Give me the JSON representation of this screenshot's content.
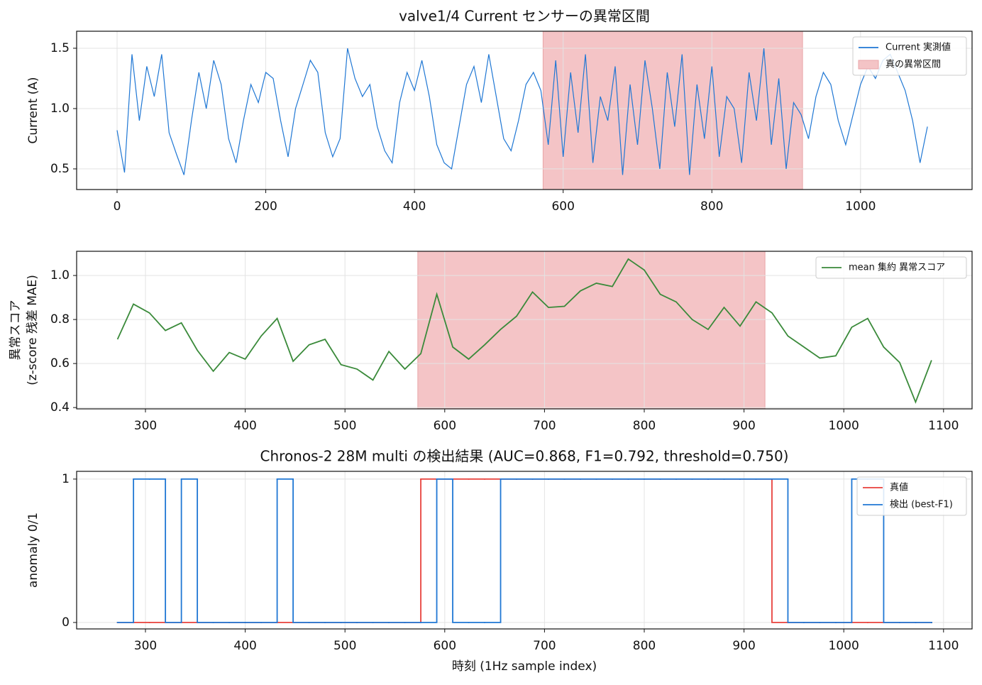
{
  "chart_data": [
    {
      "type": "line",
      "title": "valve1/4 Current センサーの異常区間",
      "ylabel": "Current (A)",
      "x": [
        0,
        10,
        20,
        30,
        40,
        50,
        60,
        70,
        80,
        90,
        100,
        110,
        120,
        130,
        140,
        150,
        160,
        170,
        180,
        190,
        200,
        210,
        220,
        230,
        240,
        250,
        260,
        270,
        280,
        290,
        300,
        310,
        320,
        330,
        340,
        350,
        360,
        370,
        380,
        390,
        400,
        410,
        420,
        430,
        440,
        450,
        460,
        470,
        480,
        490,
        500,
        510,
        520,
        530,
        540,
        550,
        560,
        570,
        580,
        590,
        600,
        610,
        620,
        630,
        640,
        650,
        660,
        670,
        680,
        690,
        700,
        710,
        720,
        730,
        740,
        750,
        760,
        770,
        780,
        790,
        800,
        810,
        820,
        830,
        840,
        850,
        860,
        870,
        880,
        890,
        900,
        910,
        920,
        930,
        940,
        950,
        960,
        970,
        980,
        990,
        1000,
        1010,
        1020,
        1030,
        1040,
        1050,
        1060,
        1070,
        1080,
        1090
      ],
      "series": [
        {
          "name": "Current 実測値",
          "color": "#1f77d4",
          "values": [
            0.82,
            0.47,
            1.45,
            0.9,
            1.35,
            1.1,
            1.45,
            0.8,
            0.62,
            0.45,
            0.9,
            1.3,
            1.0,
            1.4,
            1.2,
            0.75,
            0.55,
            0.9,
            1.2,
            1.05,
            1.3,
            1.25,
            0.9,
            0.6,
            1.0,
            1.2,
            1.4,
            1.3,
            0.8,
            0.6,
            0.75,
            1.5,
            1.25,
            1.1,
            1.2,
            0.85,
            0.65,
            0.55,
            1.05,
            1.3,
            1.15,
            1.4,
            1.1,
            0.7,
            0.55,
            0.5,
            0.85,
            1.2,
            1.35,
            1.05,
            1.45,
            1.1,
            0.75,
            0.65,
            0.9,
            1.2,
            1.3,
            1.15,
            0.7,
            1.4,
            0.6,
            1.3,
            0.8,
            1.45,
            0.55,
            1.1,
            0.9,
            1.35,
            0.45,
            1.2,
            0.7,
            1.4,
            1.0,
            0.5,
            1.3,
            0.85,
            1.45,
            0.45,
            1.2,
            0.75,
            1.35,
            0.6,
            1.1,
            1.0,
            0.55,
            1.3,
            0.9,
            1.5,
            0.7,
            1.25,
            0.5,
            1.05,
            0.95,
            0.75,
            1.1,
            1.3,
            1.2,
            0.9,
            0.7,
            0.95,
            1.2,
            1.35,
            1.25,
            1.4,
            1.45,
            1.3,
            1.15,
            0.9,
            0.55,
            0.85
          ]
        }
      ],
      "spans": [
        {
          "name": "真の異常区間",
          "x": [
            573,
            922
          ],
          "color": "#f4c4c6"
        }
      ],
      "xlim": [
        -54.4,
        1150
      ],
      "xticks": [
        0,
        200,
        400,
        600,
        800,
        1000
      ],
      "ylim": [
        0.329,
        1.641
      ],
      "yticks": [
        {
          "value": 0.5,
          "label": "0.5"
        },
        {
          "value": 1,
          "label": "1.0"
        },
        {
          "value": 1.5,
          "label": "1.5"
        }
      ],
      "grid": true,
      "legend": "upper right"
    },
    {
      "type": "line",
      "ylabel": [
        "異常スコア",
        "(z-score 残差 MAE)"
      ],
      "x": [
        272,
        288,
        304,
        320,
        336,
        352,
        368,
        384,
        400,
        416,
        432,
        448,
        464,
        480,
        496,
        512,
        528,
        544,
        560,
        576,
        592,
        608,
        624,
        640,
        656,
        672,
        688,
        704,
        720,
        736,
        752,
        768,
        784,
        800,
        816,
        832,
        848,
        864,
        880,
        896,
        912,
        928,
        944,
        960,
        976,
        992,
        1008,
        1024,
        1040,
        1056,
        1072,
        1088
      ],
      "series": [
        {
          "name": "mean 集約 異常スコア",
          "color": "#3a8a3a",
          "values": [
            0.71,
            0.87,
            0.83,
            0.75,
            0.785,
            0.66,
            0.565,
            0.65,
            0.62,
            0.725,
            0.805,
            0.61,
            0.685,
            0.71,
            0.595,
            0.575,
            0.525,
            0.655,
            0.575,
            0.645,
            0.915,
            0.675,
            0.62,
            0.685,
            0.755,
            0.815,
            0.925,
            0.855,
            0.86,
            0.93,
            0.965,
            0.95,
            1.075,
            1.025,
            0.915,
            0.88,
            0.8,
            0.755,
            0.855,
            0.77,
            0.88,
            0.83,
            0.725,
            0.675,
            0.625,
            0.635,
            0.765,
            0.805,
            0.675,
            0.605,
            0.425,
            0.615
          ]
        }
      ],
      "spans": [
        {
          "x": [
            573,
            921
          ],
          "color": "#f4c4c6"
        }
      ],
      "xlim": [
        231,
        1128.6
      ],
      "xticks": [
        300,
        400,
        500,
        600,
        700,
        800,
        900,
        1000,
        1100
      ],
      "ylim": [
        0.394,
        1.11
      ],
      "yticks": [
        {
          "value": 0.4,
          "label": "0.4"
        },
        {
          "value": 0.6,
          "label": "0.6"
        },
        {
          "value": 0.8,
          "label": "0.8"
        },
        {
          "value": 1,
          "label": "1.0"
        }
      ],
      "grid": true,
      "legend": "upper right"
    },
    {
      "type": "step",
      "title": "Chronos-2 28M multi の検出結果 (AUC=0.868, F1=0.792, threshold=0.750)",
      "xlabel": "時刻 (1Hz sample index)",
      "ylabel": "anomaly 0/1",
      "x": [
        272,
        288,
        304,
        320,
        336,
        352,
        368,
        384,
        400,
        416,
        432,
        448,
        464,
        480,
        496,
        512,
        528,
        544,
        560,
        576,
        592,
        608,
        624,
        640,
        656,
        672,
        688,
        704,
        720,
        736,
        752,
        768,
        784,
        800,
        816,
        832,
        848,
        864,
        880,
        896,
        912,
        928,
        944,
        960,
        976,
        992,
        1008,
        1024,
        1040,
        1056,
        1072,
        1088
      ],
      "series": [
        {
          "name": "真値",
          "color": "#e8413c",
          "values": [
            0,
            0,
            0,
            0,
            0,
            0,
            0,
            0,
            0,
            0,
            0,
            0,
            0,
            0,
            0,
            0,
            0,
            0,
            0,
            1,
            1,
            1,
            1,
            1,
            1,
            1,
            1,
            1,
            1,
            1,
            1,
            1,
            1,
            1,
            1,
            1,
            1,
            1,
            1,
            1,
            1,
            0,
            0,
            0,
            0,
            0,
            0,
            0,
            0,
            0,
            0,
            0
          ]
        },
        {
          "name": "検出 (best-F1)",
          "color": "#1f77d4",
          "values": [
            0,
            1,
            1,
            0,
            1,
            0,
            0,
            0,
            0,
            0,
            1,
            0,
            0,
            0,
            0,
            0,
            0,
            0,
            0,
            0,
            1,
            0,
            0,
            0,
            1,
            1,
            1,
            1,
            1,
            1,
            1,
            1,
            1,
            1,
            1,
            1,
            1,
            1,
            1,
            1,
            1,
            1,
            0,
            0,
            0,
            0,
            1,
            1,
            0,
            0,
            0,
            0
          ]
        }
      ],
      "xlim": [
        231,
        1128.6
      ],
      "xticks": [
        300,
        400,
        500,
        600,
        700,
        800,
        900,
        1000,
        1100
      ],
      "ylim": [
        -0.045,
        1.054
      ],
      "yticks": [
        0,
        1
      ],
      "grid": true,
      "legend": "upper right"
    }
  ]
}
